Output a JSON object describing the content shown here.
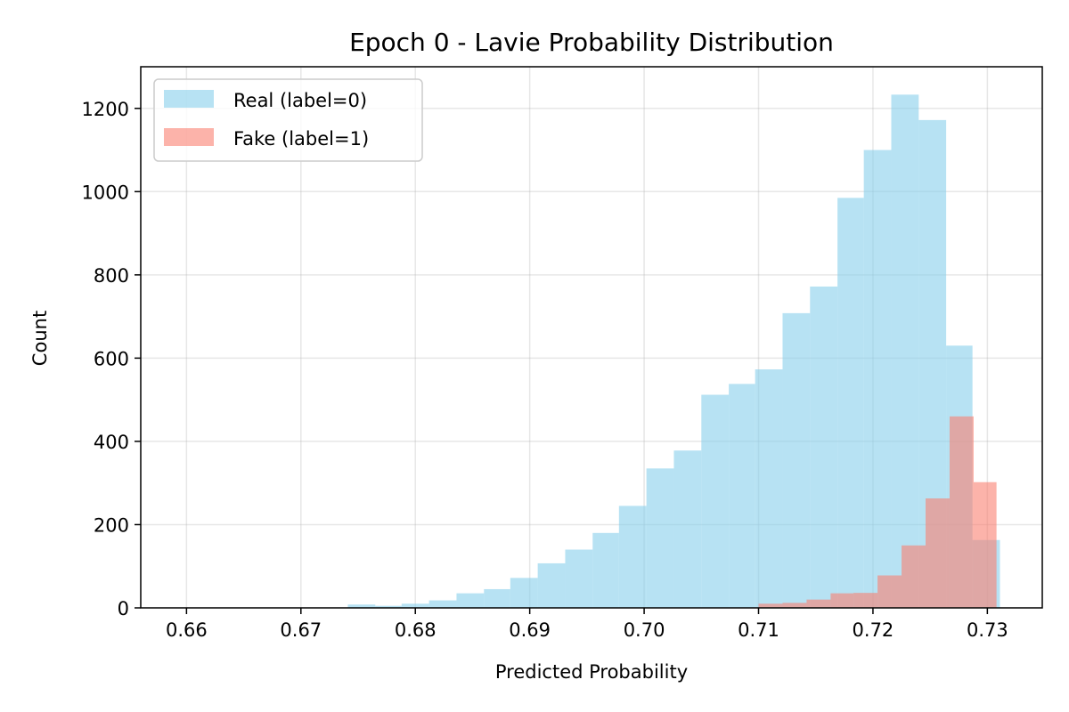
{
  "chart_data": {
    "type": "bar",
    "title": "Epoch 0 - Lavie Probability Distribution",
    "xlabel": "Predicted Probability",
    "ylabel": "Count",
    "xlim": [
      0.656,
      0.7348
    ],
    "ylim": [
      0,
      1300
    ],
    "grid": true,
    "legend_position": "upper-left",
    "xticks": [
      "0.66",
      "0.67",
      "0.68",
      "0.69",
      "0.70",
      "0.71",
      "0.72",
      "0.73"
    ],
    "xtick_values": [
      0.66,
      0.67,
      0.68,
      0.69,
      0.7,
      0.71,
      0.72,
      0.73
    ],
    "yticks": [
      "0",
      "200",
      "400",
      "600",
      "800",
      "1000",
      "1200"
    ],
    "ytick_values": [
      0,
      200,
      400,
      600,
      800,
      1000,
      1200
    ],
    "series": [
      {
        "name": "Real (label=0)",
        "color": "#87CEEB",
        "alpha": 0.6,
        "bins": [
          {
            "x0": 0.6741,
            "x1": 0.6765,
            "value": 8
          },
          {
            "x0": 0.6765,
            "x1": 0.6788,
            "value": 5
          },
          {
            "x0": 0.6788,
            "x1": 0.6812,
            "value": 10
          },
          {
            "x0": 0.6812,
            "x1": 0.6836,
            "value": 18
          },
          {
            "x0": 0.6836,
            "x1": 0.686,
            "value": 35
          },
          {
            "x0": 0.686,
            "x1": 0.6883,
            "value": 45
          },
          {
            "x0": 0.6883,
            "x1": 0.6907,
            "value": 72
          },
          {
            "x0": 0.6907,
            "x1": 0.6931,
            "value": 107
          },
          {
            "x0": 0.6931,
            "x1": 0.6955,
            "value": 140
          },
          {
            "x0": 0.6955,
            "x1": 0.6978,
            "value": 180
          },
          {
            "x0": 0.6978,
            "x1": 0.7002,
            "value": 245
          },
          {
            "x0": 0.7002,
            "x1": 0.7026,
            "value": 335
          },
          {
            "x0": 0.7026,
            "x1": 0.705,
            "value": 378
          },
          {
            "x0": 0.705,
            "x1": 0.7074,
            "value": 512
          },
          {
            "x0": 0.7074,
            "x1": 0.7097,
            "value": 538
          },
          {
            "x0": 0.7097,
            "x1": 0.7121,
            "value": 573
          },
          {
            "x0": 0.7121,
            "x1": 0.7145,
            "value": 708
          },
          {
            "x0": 0.7145,
            "x1": 0.7169,
            "value": 772
          },
          {
            "x0": 0.7169,
            "x1": 0.7192,
            "value": 985
          },
          {
            "x0": 0.7192,
            "x1": 0.7216,
            "value": 1100
          },
          {
            "x0": 0.7216,
            "x1": 0.724,
            "value": 1233
          },
          {
            "x0": 0.724,
            "x1": 0.7264,
            "value": 1172
          },
          {
            "x0": 0.7264,
            "x1": 0.7287,
            "value": 630
          },
          {
            "x0": 0.7287,
            "x1": 0.7311,
            "value": 163
          }
        ]
      },
      {
        "name": "Fake (label=1)",
        "color": "#FA8072",
        "alpha": 0.6,
        "bins": [
          {
            "x0": 0.71,
            "x1": 0.7121,
            "value": 10
          },
          {
            "x0": 0.7121,
            "x1": 0.7142,
            "value": 12
          },
          {
            "x0": 0.7142,
            "x1": 0.7163,
            "value": 20
          },
          {
            "x0": 0.7163,
            "x1": 0.7183,
            "value": 35
          },
          {
            "x0": 0.7183,
            "x1": 0.7204,
            "value": 36
          },
          {
            "x0": 0.7204,
            "x1": 0.7225,
            "value": 78
          },
          {
            "x0": 0.7225,
            "x1": 0.7246,
            "value": 150
          },
          {
            "x0": 0.7246,
            "x1": 0.7267,
            "value": 263
          },
          {
            "x0": 0.7267,
            "x1": 0.7288,
            "value": 460
          },
          {
            "x0": 0.7288,
            "x1": 0.7308,
            "value": 302
          }
        ]
      }
    ]
  }
}
